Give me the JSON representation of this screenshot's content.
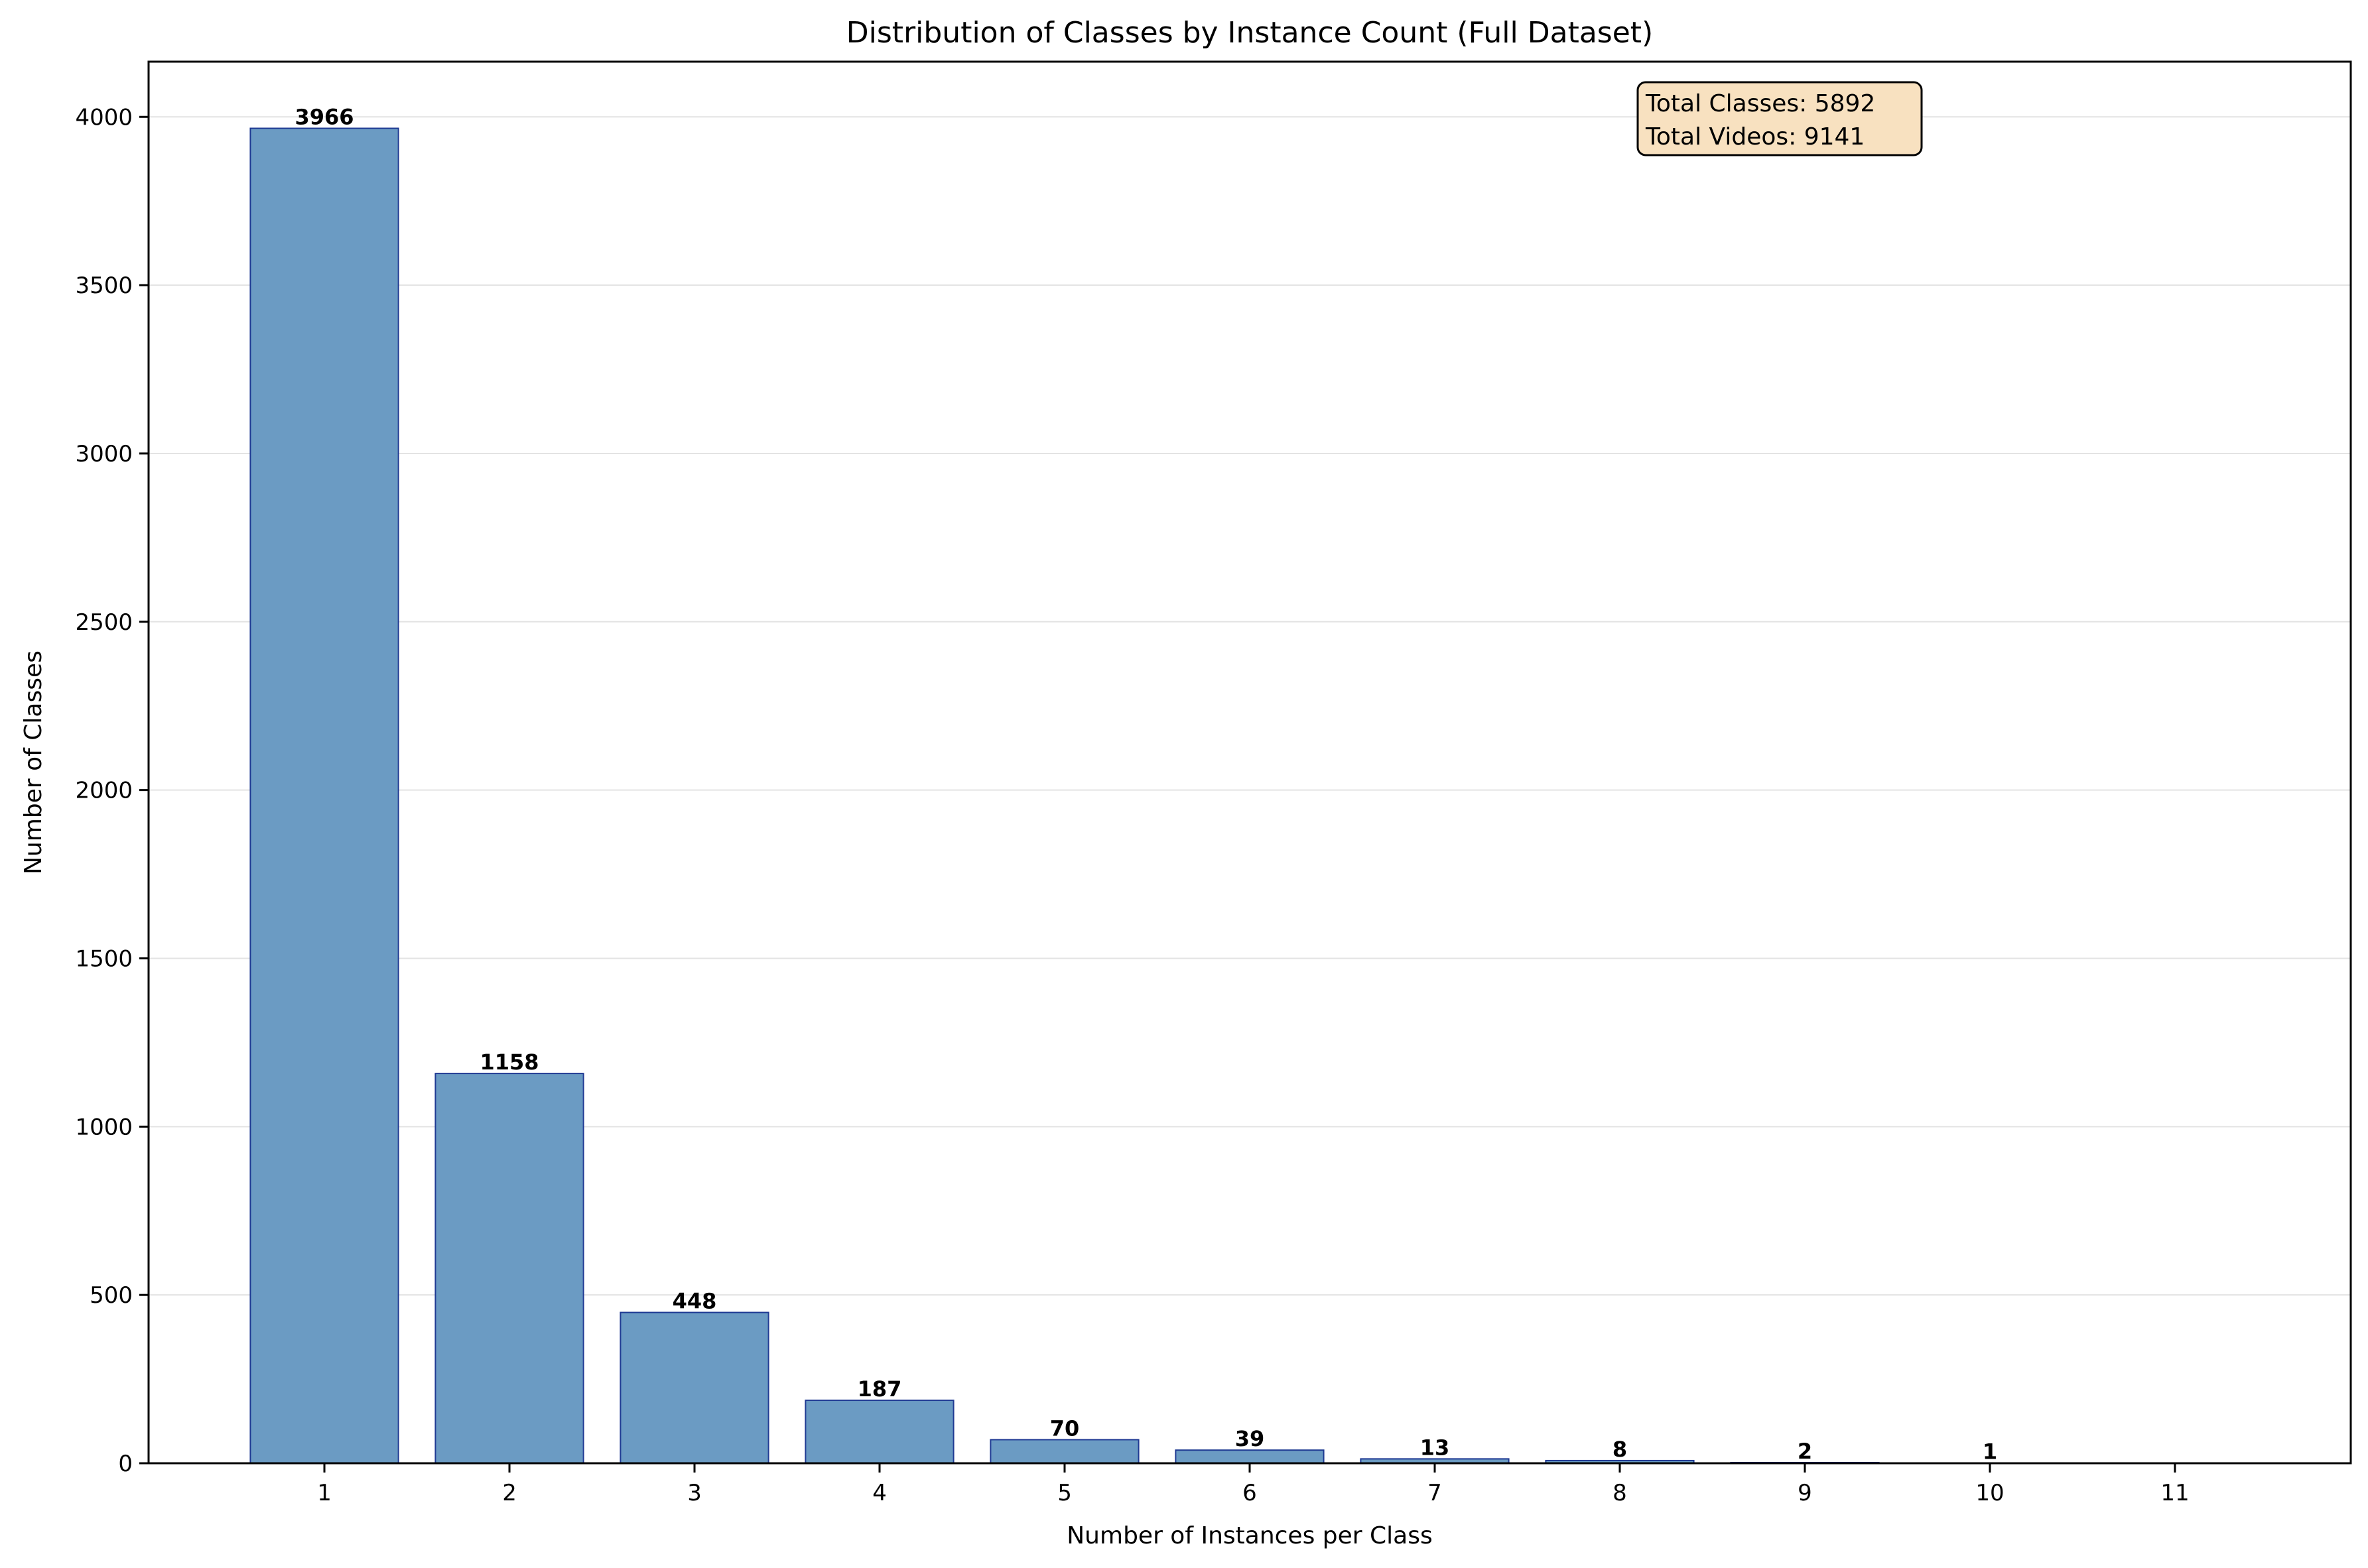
{
  "chart_data": {
    "type": "bar",
    "title": "Distribution of Classes by Instance Count (Full Dataset)",
    "xlabel": "Number of Instances per Class",
    "ylabel": "Number of Classes",
    "categories": [
      1,
      2,
      3,
      4,
      5,
      6,
      7,
      8,
      9,
      10
    ],
    "values": [
      3966,
      1158,
      448,
      187,
      70,
      39,
      13,
      8,
      2,
      1
    ],
    "x_ticks": [
      1,
      2,
      3,
      4,
      5,
      6,
      7,
      8,
      9,
      10,
      11
    ],
    "y_ticks": [
      0,
      500,
      1000,
      1500,
      2000,
      2500,
      3000,
      3500,
      4000
    ],
    "xlim": [
      0.05,
      11.95
    ],
    "ylim": [
      0,
      4164
    ],
    "grid": "y",
    "legend": "none",
    "bar_color": "#6b9bc3",
    "bar_edge_color": "#1f3a93",
    "info_box": {
      "lines": [
        "Total Classes: 5892",
        "Total Videos: 9141"
      ],
      "placement": "top-right",
      "background": "#f8e1c0"
    }
  }
}
